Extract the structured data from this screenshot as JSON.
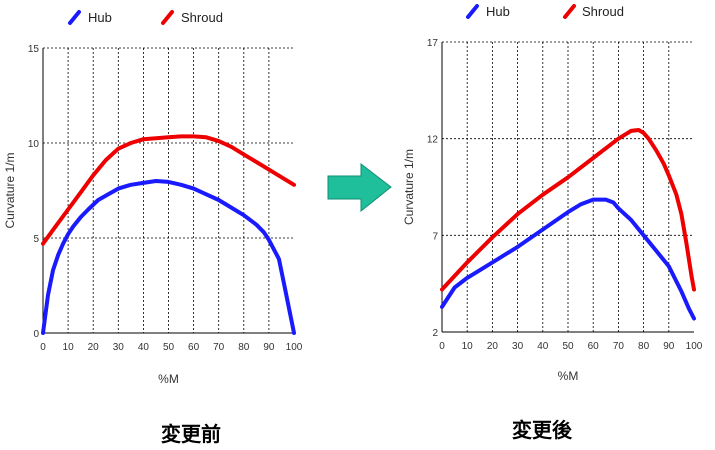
{
  "arrow_color": "#1fbf9b",
  "chart_data": [
    {
      "type": "line",
      "caption": "変更前",
      "xlabel": "%M",
      "ylabel": "Curvature 1/m",
      "xlim": [
        0,
        100
      ],
      "ylim": [
        0,
        15
      ],
      "x_ticks": [
        "0",
        "10",
        "20",
        "30",
        "40",
        "50",
        "60",
        "70",
        "80",
        "90",
        "100"
      ],
      "y_ticks": [
        "0",
        "5",
        "10",
        "15"
      ],
      "grid": true,
      "legend_position": "top",
      "series": [
        {
          "name": "Hub",
          "color": "#1a1aff",
          "x": [
            0,
            2,
            4,
            6,
            8,
            10,
            12,
            15,
            18,
            22,
            26,
            30,
            35,
            40,
            45,
            50,
            55,
            60,
            65,
            70,
            75,
            80,
            85,
            88,
            90,
            92,
            94,
            96,
            98,
            100
          ],
          "y": [
            0,
            2,
            3.3,
            4.1,
            4.7,
            5.2,
            5.6,
            6.1,
            6.5,
            7,
            7.3,
            7.6,
            7.8,
            7.9,
            8.0,
            7.95,
            7.8,
            7.6,
            7.3,
            7.0,
            6.6,
            6.2,
            5.7,
            5.3,
            4.9,
            4.4,
            3.9,
            2.6,
            1.3,
            0
          ]
        },
        {
          "name": "Shroud",
          "color": "#ee0000",
          "x": [
            0,
            5,
            10,
            15,
            20,
            25,
            30,
            35,
            40,
            45,
            50,
            55,
            60,
            65,
            70,
            75,
            80,
            85,
            90,
            95,
            100
          ],
          "y": [
            4.7,
            5.6,
            6.5,
            7.4,
            8.3,
            9.1,
            9.7,
            10.0,
            10.2,
            10.25,
            10.3,
            10.35,
            10.35,
            10.3,
            10.1,
            9.8,
            9.4,
            9.0,
            8.6,
            8.2,
            7.8
          ]
        }
      ]
    },
    {
      "type": "line",
      "caption": "変更後",
      "xlabel": "%M",
      "ylabel": "Curvature 1/m",
      "xlim": [
        0,
        100
      ],
      "ylim": [
        2,
        17
      ],
      "x_ticks": [
        "0",
        "10",
        "20",
        "30",
        "40",
        "50",
        "60",
        "70",
        "80",
        "90",
        "100"
      ],
      "y_ticks": [
        "2",
        "7",
        "12",
        "17"
      ],
      "grid": true,
      "legend_position": "top",
      "series": [
        {
          "name": "Hub",
          "color": "#1a1aff",
          "x": [
            0,
            5,
            10,
            20,
            30,
            40,
            50,
            55,
            60,
            65,
            68,
            70,
            75,
            80,
            85,
            90,
            95,
            98,
            100
          ],
          "y": [
            3.3,
            4.3,
            4.8,
            5.6,
            6.4,
            7.3,
            8.2,
            8.6,
            8.85,
            8.85,
            8.7,
            8.4,
            7.8,
            7.0,
            6.2,
            5.4,
            4.1,
            3.2,
            2.7
          ]
        },
        {
          "name": "Shroud",
          "color": "#ee0000",
          "x": [
            0,
            10,
            20,
            30,
            40,
            50,
            60,
            65,
            70,
            75,
            78,
            80,
            82,
            85,
            88,
            90,
            93,
            95,
            97,
            99,
            100
          ],
          "y": [
            4.2,
            5.6,
            6.9,
            8.1,
            9.1,
            10.0,
            11.0,
            11.5,
            12.0,
            12.4,
            12.45,
            12.3,
            12.0,
            11.4,
            10.7,
            10.1,
            9.1,
            8.1,
            6.6,
            4.9,
            4.2
          ]
        }
      ]
    }
  ]
}
